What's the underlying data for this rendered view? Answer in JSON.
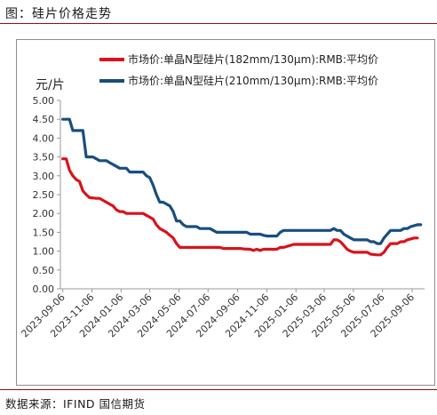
{
  "header": {
    "title": "图：硅片价格走势"
  },
  "footer": {
    "source": "数据来源：IFIND 国信期货"
  },
  "chart_data": {
    "type": "line",
    "ylabel": "元/片",
    "ylim": [
      0,
      5
    ],
    "yticks": [
      "0.00",
      "0.50",
      "1.00",
      "1.50",
      "2.00",
      "2.50",
      "3.00",
      "3.50",
      "4.00",
      "4.50",
      "5.00"
    ],
    "xlim": [
      "2023-09-01",
      "2025-10-02"
    ],
    "xticks": [
      "2023-09-06",
      "2023-11-06",
      "2024-01-06",
      "2024-03-06",
      "2024-05-06",
      "2024-07-06",
      "2024-09-06",
      "2024-11-06",
      "2025-01-06",
      "2025-03-06",
      "2025-05-06",
      "2025-07-06",
      "2025-09-06"
    ],
    "grid": false,
    "legend_position": "top",
    "colors": {
      "s182": "#d9121b",
      "s210": "#184e7f"
    },
    "series": [
      {
        "name": "市场价:单晶N型硅片(182mm/130μm):RMB:平均价",
        "color": "#d9121b",
        "points": [
          [
            "2023-09-06",
            3.45
          ],
          [
            "2023-09-13",
            3.45
          ],
          [
            "2023-09-20",
            3.15
          ],
          [
            "2023-09-27",
            3.0
          ],
          [
            "2023-10-04",
            2.9
          ],
          [
            "2023-10-11",
            2.85
          ],
          [
            "2023-10-18",
            2.6
          ],
          [
            "2023-10-25",
            2.5
          ],
          [
            "2023-11-01",
            2.42
          ],
          [
            "2023-11-15",
            2.4
          ],
          [
            "2023-11-22",
            2.4
          ],
          [
            "2023-11-29",
            2.35
          ],
          [
            "2023-12-06",
            2.3
          ],
          [
            "2023-12-13",
            2.25
          ],
          [
            "2023-12-20",
            2.2
          ],
          [
            "2023-12-27",
            2.1
          ],
          [
            "2024-01-03",
            2.05
          ],
          [
            "2024-01-10",
            2.05
          ],
          [
            "2024-01-17",
            2.0
          ],
          [
            "2024-01-24",
            2.0
          ],
          [
            "2024-02-21",
            2.0
          ],
          [
            "2024-02-28",
            1.95
          ],
          [
            "2024-03-06",
            1.9
          ],
          [
            "2024-03-13",
            1.85
          ],
          [
            "2024-03-20",
            1.7
          ],
          [
            "2024-03-27",
            1.6
          ],
          [
            "2024-04-03",
            1.55
          ],
          [
            "2024-04-10",
            1.5
          ],
          [
            "2024-04-17",
            1.42
          ],
          [
            "2024-04-24",
            1.35
          ],
          [
            "2024-05-01",
            1.2
          ],
          [
            "2024-05-08",
            1.1
          ],
          [
            "2024-07-31",
            1.1
          ],
          [
            "2024-08-07",
            1.07
          ],
          [
            "2024-09-11",
            1.07
          ],
          [
            "2024-09-18",
            1.06
          ],
          [
            "2024-10-02",
            1.05
          ],
          [
            "2024-10-09",
            1.02
          ],
          [
            "2024-10-16",
            1.05
          ],
          [
            "2024-10-23",
            1.02
          ],
          [
            "2024-10-30",
            1.05
          ],
          [
            "2024-11-27",
            1.05
          ],
          [
            "2024-12-04",
            1.1
          ],
          [
            "2024-12-11",
            1.1
          ],
          [
            "2024-12-25",
            1.15
          ],
          [
            "2025-01-01",
            1.18
          ],
          [
            "2025-03-19",
            1.18
          ],
          [
            "2025-03-26",
            1.3
          ],
          [
            "2025-04-02",
            1.3
          ],
          [
            "2025-04-09",
            1.25
          ],
          [
            "2025-04-16",
            1.15
          ],
          [
            "2025-04-23",
            1.05
          ],
          [
            "2025-04-30",
            1.0
          ],
          [
            "2025-05-07",
            0.97
          ],
          [
            "2025-06-04",
            0.97
          ],
          [
            "2025-06-11",
            0.92
          ],
          [
            "2025-06-25",
            0.9
          ],
          [
            "2025-07-02",
            0.9
          ],
          [
            "2025-07-09",
            0.97
          ],
          [
            "2025-07-16",
            1.1
          ],
          [
            "2025-07-23",
            1.2
          ],
          [
            "2025-08-06",
            1.2
          ],
          [
            "2025-08-13",
            1.25
          ],
          [
            "2025-08-20",
            1.25
          ],
          [
            "2025-08-27",
            1.3
          ],
          [
            "2025-09-10",
            1.35
          ],
          [
            "2025-09-17",
            1.35
          ]
        ]
      },
      {
        "name": "市场价:单晶N型硅片(210mm/130μm):RMB:平均价",
        "color": "#184e7f",
        "points": [
          [
            "2023-09-06",
            4.5
          ],
          [
            "2023-09-20",
            4.5
          ],
          [
            "2023-09-27",
            4.2
          ],
          [
            "2023-10-18",
            4.2
          ],
          [
            "2023-10-25",
            3.5
          ],
          [
            "2023-11-08",
            3.5
          ],
          [
            "2023-11-15",
            3.45
          ],
          [
            "2023-11-22",
            3.4
          ],
          [
            "2023-12-06",
            3.4
          ],
          [
            "2023-12-13",
            3.35
          ],
          [
            "2023-12-27",
            3.25
          ],
          [
            "2024-01-03",
            3.2
          ],
          [
            "2024-01-17",
            3.2
          ],
          [
            "2024-01-24",
            3.1
          ],
          [
            "2024-02-21",
            3.1
          ],
          [
            "2024-02-28",
            3.0
          ],
          [
            "2024-03-06",
            2.95
          ],
          [
            "2024-03-13",
            2.75
          ],
          [
            "2024-03-20",
            2.5
          ],
          [
            "2024-03-27",
            2.3
          ],
          [
            "2024-04-03",
            2.3
          ],
          [
            "2024-04-10",
            2.25
          ],
          [
            "2024-04-17",
            2.2
          ],
          [
            "2024-04-24",
            2.05
          ],
          [
            "2024-05-01",
            1.8
          ],
          [
            "2024-05-08",
            1.8
          ],
          [
            "2024-05-15",
            1.7
          ],
          [
            "2024-05-22",
            1.65
          ],
          [
            "2024-06-12",
            1.65
          ],
          [
            "2024-06-19",
            1.6
          ],
          [
            "2024-07-10",
            1.6
          ],
          [
            "2024-07-17",
            1.55
          ],
          [
            "2024-07-24",
            1.5
          ],
          [
            "2024-09-25",
            1.5
          ],
          [
            "2024-10-02",
            1.45
          ],
          [
            "2024-10-23",
            1.45
          ],
          [
            "2024-10-30",
            1.42
          ],
          [
            "2024-11-06",
            1.4
          ],
          [
            "2024-11-27",
            1.4
          ],
          [
            "2024-12-04",
            1.5
          ],
          [
            "2024-12-11",
            1.55
          ],
          [
            "2025-03-19",
            1.55
          ],
          [
            "2025-03-26",
            1.6
          ],
          [
            "2025-04-02",
            1.55
          ],
          [
            "2025-04-09",
            1.55
          ],
          [
            "2025-04-16",
            1.45
          ],
          [
            "2025-04-30",
            1.35
          ],
          [
            "2025-05-07",
            1.3
          ],
          [
            "2025-06-04",
            1.3
          ],
          [
            "2025-06-11",
            1.25
          ],
          [
            "2025-06-18",
            1.25
          ],
          [
            "2025-06-25",
            1.2
          ],
          [
            "2025-07-02",
            1.2
          ],
          [
            "2025-07-09",
            1.35
          ],
          [
            "2025-07-16",
            1.45
          ],
          [
            "2025-07-23",
            1.55
          ],
          [
            "2025-08-13",
            1.55
          ],
          [
            "2025-08-20",
            1.6
          ],
          [
            "2025-08-27",
            1.6
          ],
          [
            "2025-09-03",
            1.65
          ],
          [
            "2025-09-17",
            1.7
          ],
          [
            "2025-09-24",
            1.7
          ]
        ]
      }
    ]
  }
}
